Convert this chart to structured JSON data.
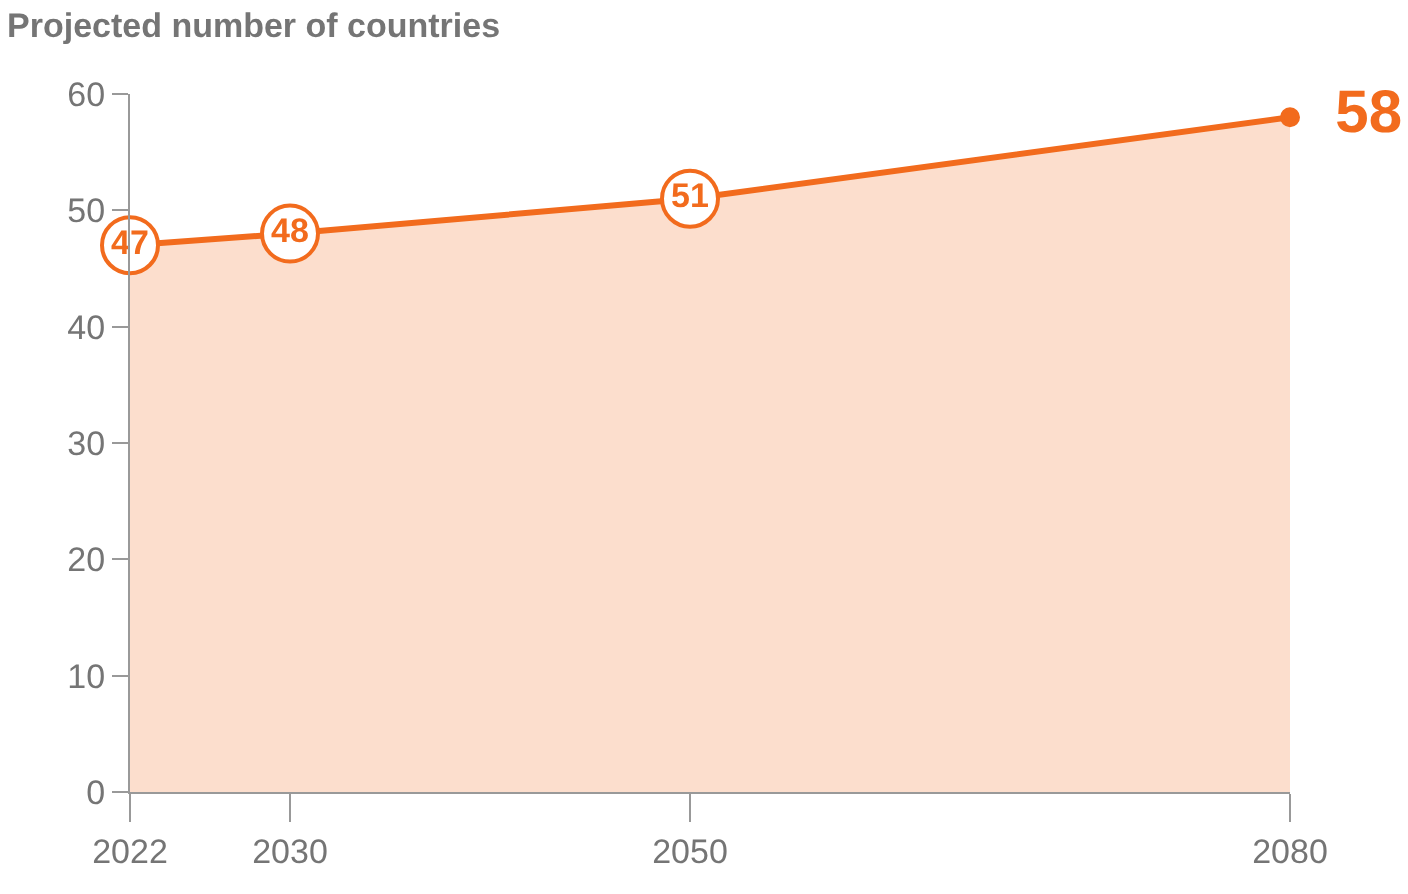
{
  "chart_data": {
    "type": "area",
    "title": "Projected number of countries",
    "x": [
      2022,
      2030,
      2050,
      2080
    ],
    "series": [
      {
        "color": "#f26b1d",
        "values": [
          47,
          48,
          51,
          58
        ]
      }
    ],
    "xlim": [
      2022,
      2080
    ],
    "xticks": [
      2022,
      2030,
      2050,
      2080
    ],
    "ylim": [
      0,
      60
    ],
    "yticks": [
      0,
      10,
      20,
      30,
      40,
      50,
      60
    ],
    "legend": false,
    "marker": "circle",
    "data_labels": true
  }
}
